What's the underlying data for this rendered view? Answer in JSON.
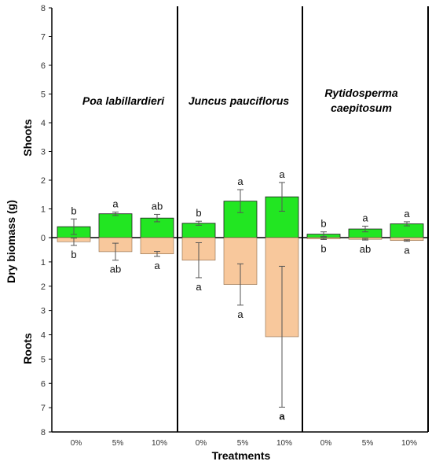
{
  "chart_data": {
    "type": "bar",
    "xlabel": "Treatments",
    "ylabel": "Dry biomass (g)",
    "region_labels": {
      "top": "Shoots",
      "bottom": "Roots"
    },
    "yticks": [
      8,
      7,
      6,
      5,
      4,
      3,
      2,
      1,
      0,
      1,
      2,
      3,
      4,
      5,
      6,
      7,
      8
    ],
    "ylim": [
      -8,
      8
    ],
    "categories": [
      "0%",
      "5%",
      "10%"
    ],
    "colors": {
      "shoot": "#22e622",
      "root": "#f8c89c",
      "axis": "#000000"
    },
    "panels": [
      {
        "title_lines": [
          "Poa labillardieri"
        ],
        "shoots": {
          "values": [
            0.38,
            0.83,
            0.68
          ],
          "errors": [
            0.27,
            0.06,
            0.13
          ],
          "letters": [
            "b",
            "a",
            "ab"
          ]
        },
        "roots": {
          "values": [
            0.17,
            0.58,
            0.67
          ],
          "errors": [
            0.15,
            0.35,
            0.1
          ],
          "letters": [
            "b",
            "ab",
            "a"
          ]
        }
      },
      {
        "title_lines": [
          "Juncus pauciflorus"
        ],
        "shoots": {
          "values": [
            0.5,
            1.27,
            1.42
          ],
          "errors": [
            0.07,
            0.4,
            0.5
          ],
          "letters": [
            "b",
            "a",
            "a"
          ]
        },
        "roots": {
          "values": [
            0.93,
            1.93,
            4.08
          ],
          "errors": [
            0.72,
            0.85,
            2.9
          ],
          "letters": [
            "a",
            "a",
            "a"
          ]
        }
      },
      {
        "title_lines": [
          "Rytidosperma",
          "caepitosum"
        ],
        "shoots": {
          "values": [
            0.12,
            0.3,
            0.48
          ],
          "errors": [
            0.08,
            0.1,
            0.07
          ],
          "letters": [
            "b",
            "a",
            "a"
          ]
        },
        "roots": {
          "values": [
            0.05,
            0.07,
            0.12
          ],
          "errors": [
            0.03,
            0.03,
            0.03
          ],
          "letters": [
            "b",
            "ab",
            "a"
          ]
        }
      }
    ]
  }
}
